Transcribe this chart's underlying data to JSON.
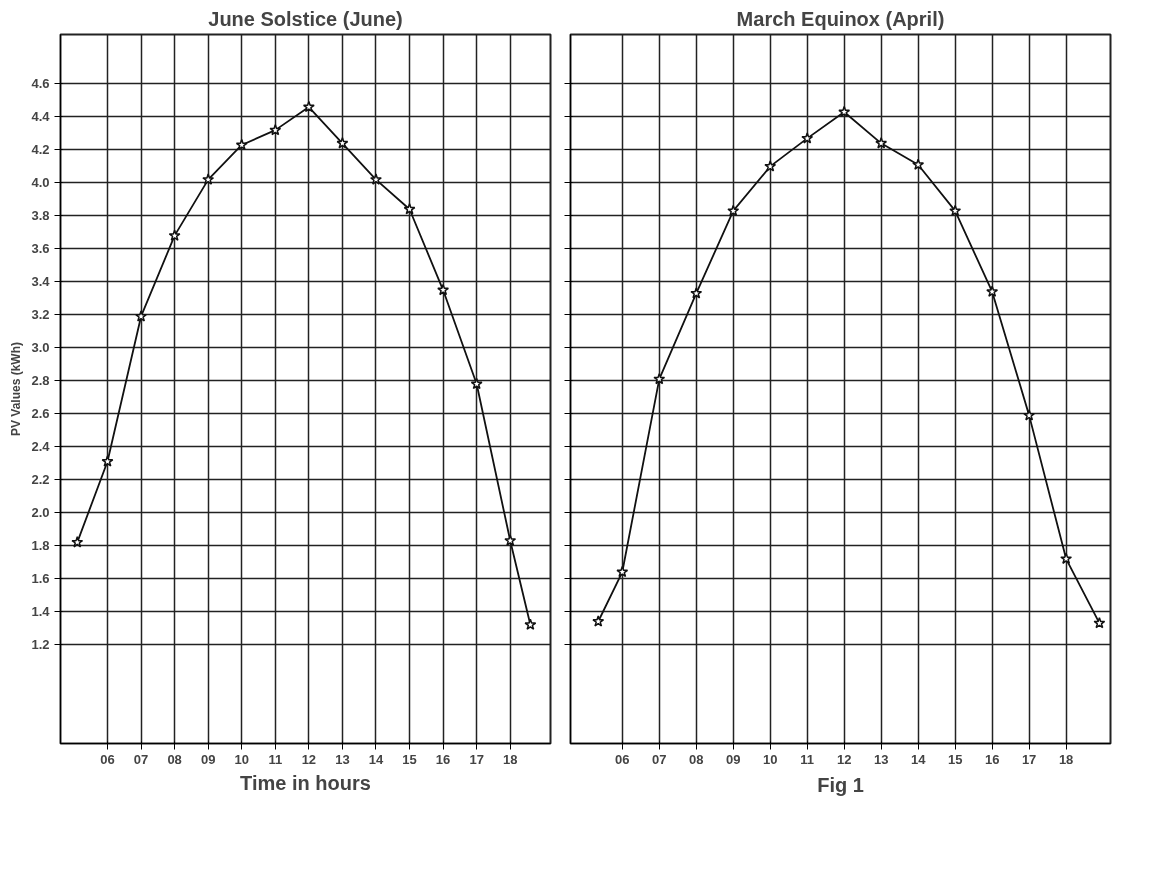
{
  "chart_data": [
    {
      "type": "line",
      "title": "June Solstice (June)",
      "ylabel": "PV Values (kWh)",
      "xlabel": "Time in hours",
      "x": [
        5.1,
        6,
        7,
        8,
        9,
        10,
        11,
        12,
        13,
        14,
        15,
        16,
        17,
        18,
        18.6
      ],
      "series": [
        {
          "color": "#111111",
          "values": [
            1.82,
            2.31,
            3.19,
            3.68,
            4.02,
            4.23,
            4.32,
            4.46,
            4.24,
            4.02,
            3.84,
            3.35,
            2.78,
            1.83,
            1.32
          ]
        }
      ],
      "xlim": [
        4.6,
        19.2
      ],
      "ylim": [
        0.6,
        4.9
      ],
      "xticks": [
        {
          "value": 6,
          "label": "06"
        },
        {
          "value": 7,
          "label": "07"
        },
        {
          "value": 8,
          "label": "08"
        },
        {
          "value": 9,
          "label": "09"
        },
        10,
        11,
        12,
        13,
        14,
        15,
        16,
        17,
        18
      ],
      "yticks": [
        1.2,
        1.4,
        1.6,
        1.8,
        {
          "value": 2,
          "label": "2.0"
        },
        2.2,
        2.4,
        2.6,
        2.8,
        {
          "value": 3,
          "label": "3.0"
        },
        3.2,
        3.4,
        3.6,
        3.8,
        {
          "value": 4,
          "label": "4.0"
        },
        4.2,
        4.4,
        4.6
      ],
      "grid": true,
      "marker": "star",
      "line_style": "solid"
    },
    {
      "type": "line",
      "title": "March Equinox (April)",
      "annotations": [
        "Fig 1"
      ],
      "x": [
        5.35,
        6,
        7,
        8,
        9,
        10,
        11,
        12,
        13,
        14,
        15,
        16,
        17,
        18,
        18.9
      ],
      "series": [
        {
          "color": "#111111",
          "values": [
            1.34,
            1.64,
            2.81,
            3.33,
            3.83,
            4.1,
            4.27,
            4.43,
            4.24,
            4.11,
            3.83,
            3.34,
            2.59,
            1.72,
            1.33
          ]
        }
      ],
      "xlim": [
        4.6,
        19.2
      ],
      "ylim": [
        0.6,
        4.9
      ],
      "xticks": [
        {
          "value": 6,
          "label": "06"
        },
        {
          "value": 7,
          "label": "07"
        },
        {
          "value": 8,
          "label": "08"
        },
        {
          "value": 9,
          "label": "09"
        },
        10,
        11,
        12,
        13,
        14,
        15,
        16,
        17,
        18
      ],
      "yticks": [
        1.2,
        1.4,
        1.6,
        1.8,
        2,
        2.2,
        2.4,
        2.6,
        2.8,
        3,
        3.2,
        3.4,
        3.6,
        3.8,
        4,
        4.2,
        4.4,
        4.6
      ],
      "tick_labels": "x",
      "grid": true,
      "marker": "star",
      "line_style": "solid"
    }
  ]
}
